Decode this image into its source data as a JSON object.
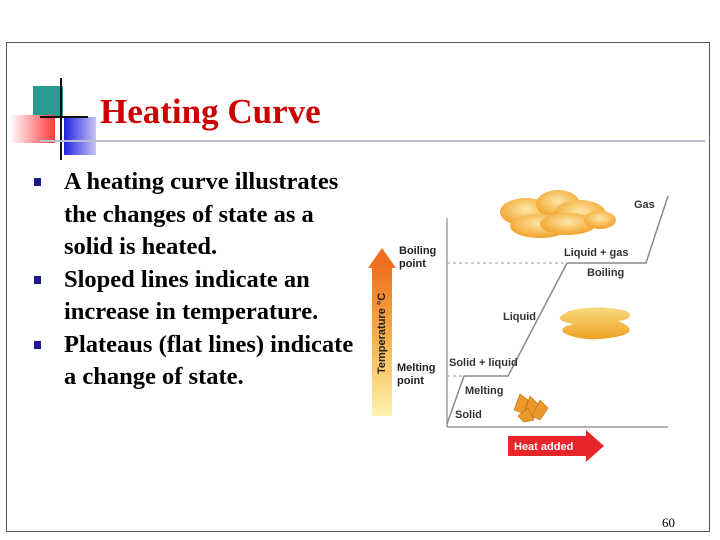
{
  "slide": {
    "title": "Heating Curve",
    "bullets": [
      "A heating curve illustrates the changes of state as a solid is heated.",
      "Sloped lines indicate an increase in temperature.",
      "Plateaus (flat lines) indicate a change of state."
    ],
    "page_number": "60"
  },
  "figure": {
    "y_axis_label": "Temperature °C",
    "boiling_point_label": [
      "Boiling",
      "point"
    ],
    "melting_point_label": [
      "Melting",
      "point"
    ],
    "heat_added_label": "Heat added",
    "region_labels": {
      "gas": "Gas",
      "liquid_gas": "Liquid + gas",
      "boiling": "Boiling",
      "liquid": "Liquid",
      "solid_liquid": "Solid + liquid",
      "melting": "Melting",
      "solid": "Solid"
    },
    "colors": {
      "title": "#cc0000",
      "arrow_orange": "#f07d1e",
      "heat_arrow_red": "#e8262a",
      "gas_cloud": "#f5b13a",
      "liquid_puddle": "#f2b531",
      "solid_crystal": "#e89a2a"
    }
  }
}
